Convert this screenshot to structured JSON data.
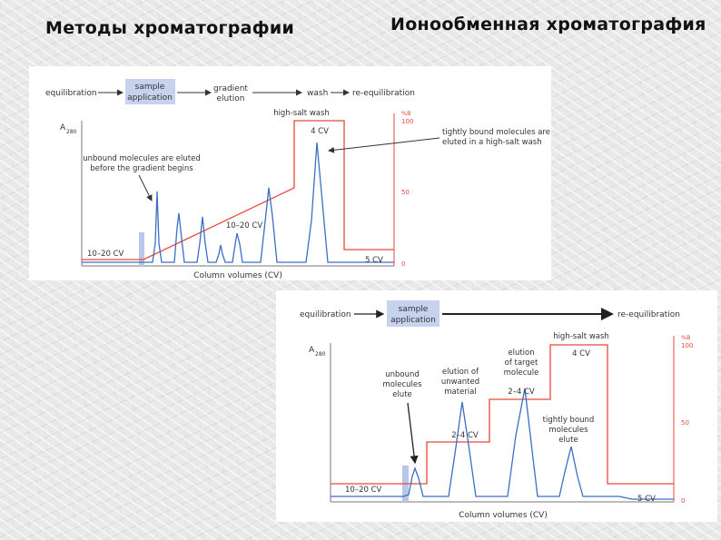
{
  "slide": {
    "title_left": "Методы хроматографии",
    "title_right": "Ионообменная хроматография"
  },
  "colors": {
    "salt": "#e8493c",
    "signal": "#3b6fc4",
    "sample": "#b8c6ea",
    "text": "#333333"
  },
  "figure1": {
    "steps": {
      "equilibration": "equilibration",
      "sample_application": [
        "sample",
        "application"
      ],
      "gradient_elution": [
        "gradient",
        "elution"
      ],
      "wash": "wash",
      "re_equilibration": "re-equilibration"
    },
    "y_axis_label": "A",
    "y_axis_sub": "280",
    "x_axis_label": "Column volumes (CV)",
    "right_axis": {
      "unit": "%B",
      "ticks": [
        "100",
        "50",
        "0"
      ]
    },
    "annotations": {
      "high_salt_wash": "high-salt wash",
      "wash_volume": "4 CV",
      "unbound": [
        "unbound molecules are eluted",
        "before the gradient begins"
      ],
      "tightly_bound": [
        "tightly bound molecules are",
        "eluted in a high-salt wash"
      ],
      "gradient_volume": "10–20 CV",
      "equilibration_volume": "10–20 CV",
      "reequilibration_volume": "5 CV"
    }
  },
  "figure2": {
    "steps": {
      "equilibration": "equilibration",
      "sample_application": [
        "sample",
        "application"
      ],
      "re_equilibration": "re-equilibration"
    },
    "y_axis_label": "A",
    "y_axis_sub": "280",
    "x_axis_label": "Column volumes (CV)",
    "right_axis": {
      "unit": "%B",
      "ticks": [
        "100",
        "50",
        "0"
      ]
    },
    "annotations": {
      "high_salt_wash": "high-salt wash",
      "wash_volume": "4 CV",
      "unbound": [
        "unbound",
        "molecules",
        "elute"
      ],
      "unwanted": [
        "elution of",
        "unwanted",
        "material"
      ],
      "target": [
        "elution",
        "of target",
        "molecule"
      ],
      "step1_volume": "2–4 CV",
      "step2_volume": "2–4 CV",
      "tightly_bound": [
        "tightly bound",
        "molecules",
        "elute"
      ],
      "equilibration_volume": "10–20 CV",
      "reequilibration_volume": "5 CV"
    }
  }
}
